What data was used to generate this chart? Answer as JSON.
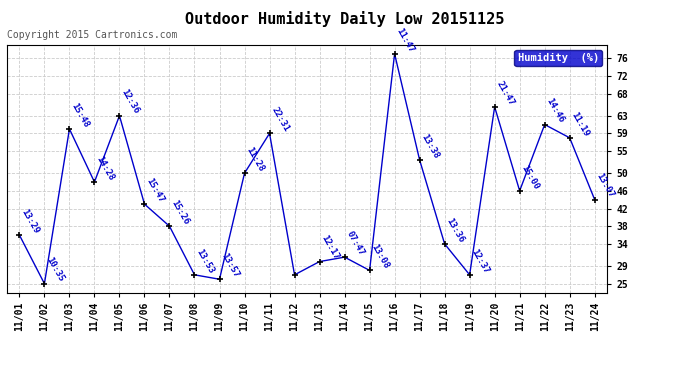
{
  "title": "Outdoor Humidity Daily Low 20151125",
  "copyright": "Copyright 2015 Cartronics.com",
  "ylim": [
    23,
    79
  ],
  "yticks": [
    25,
    29,
    34,
    38,
    42,
    46,
    50,
    55,
    59,
    63,
    68,
    72,
    76
  ],
  "background_color": "#ffffff",
  "line_color": "#0000cc",
  "grid_color": "#cccccc",
  "dates": [
    "11/01",
    "11/02",
    "11/03",
    "11/04",
    "11/05",
    "11/06",
    "11/07",
    "11/08",
    "11/09",
    "11/10",
    "11/11",
    "11/12",
    "11/13",
    "11/14",
    "11/15",
    "11/16",
    "11/17",
    "11/18",
    "11/19",
    "11/20",
    "11/21",
    "11/22",
    "11/23",
    "11/24"
  ],
  "values": [
    36,
    25,
    60,
    48,
    63,
    43,
    38,
    27,
    26,
    50,
    59,
    27,
    30,
    31,
    28,
    77,
    53,
    34,
    27,
    65,
    46,
    61,
    58,
    44
  ],
  "labels": [
    "13:29",
    "10:35",
    "15:48",
    "14:28",
    "12:36",
    "15:47",
    "15:26",
    "13:53",
    "13:57",
    "11:28",
    "22:31",
    "",
    "12:17",
    "07:47",
    "13:08",
    "11:47",
    "13:38",
    "13:36",
    "12:37",
    "21:47",
    "15:00",
    "14:46",
    "11:19",
    "13:07"
  ],
  "legend_text": "Humidity  (%)",
  "legend_bg": "#0000cc",
  "legend_fg": "#ffffff",
  "title_fontsize": 11,
  "copyright_fontsize": 7,
  "tick_fontsize": 7,
  "label_fontsize": 6.5
}
